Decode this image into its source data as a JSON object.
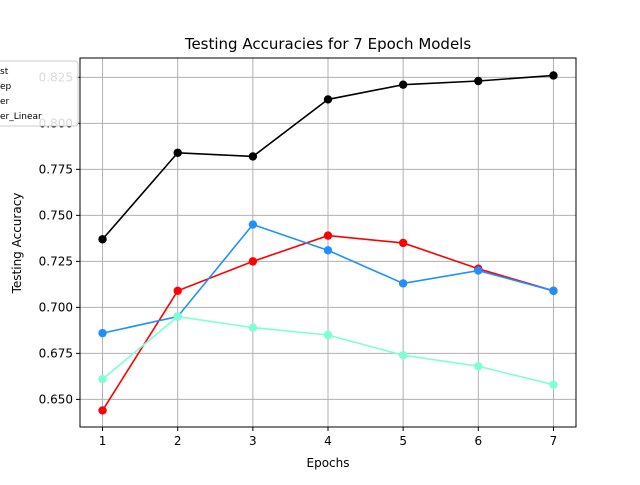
{
  "chart_data": {
    "type": "line",
    "title": "Testing Accuracies for 7 Epoch Models",
    "xlabel": "Epochs",
    "ylabel": "Testing Accuracy",
    "x": [
      1,
      2,
      3,
      4,
      5,
      6,
      7
    ],
    "xlim": [
      0.7,
      7.3
    ],
    "ylim": [
      0.635,
      0.8355
    ],
    "xticks": [
      "1",
      "2",
      "3",
      "4",
      "5",
      "6",
      "7"
    ],
    "yticks": [
      "0.650",
      "0.675",
      "0.700",
      "0.725",
      "0.750",
      "0.775",
      "0.800",
      "0.825"
    ],
    "grid": true,
    "legend_position": "upper-left",
    "legend_entries_visible": [
      "st",
      "ep",
      "er",
      "er_Linear"
    ],
    "series": [
      {
        "color": "#000000",
        "values": [
          0.737,
          0.784,
          0.782,
          0.813,
          0.821,
          0.823,
          0.826
        ]
      },
      {
        "color": "#ff0000",
        "values": [
          0.644,
          0.709,
          0.725,
          0.739,
          0.735,
          0.721,
          0.709
        ]
      },
      {
        "color": "#1e90ff",
        "values": [
          0.686,
          0.695,
          0.745,
          0.731,
          0.713,
          0.72,
          0.709
        ]
      },
      {
        "color": "#7fffd4",
        "values": [
          0.661,
          0.695,
          0.689,
          0.685,
          0.674,
          0.668,
          0.658
        ]
      }
    ]
  }
}
